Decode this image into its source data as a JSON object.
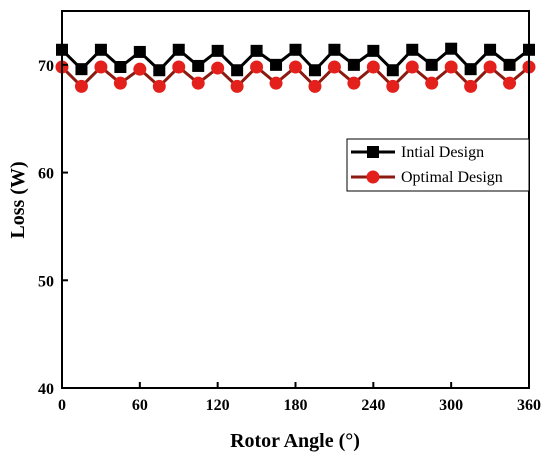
{
  "chart_data": {
    "type": "line",
    "title": "",
    "xlabel": "Rotor Angle (°)",
    "ylabel": "Loss (W)",
    "xlim": [
      0,
      360
    ],
    "ylim": [
      40,
      75
    ],
    "xticks": [
      0,
      60,
      120,
      180,
      240,
      300,
      360
    ],
    "yticks": [
      40,
      50,
      60,
      70
    ],
    "xtick_labels": [
      "0",
      "60",
      "120",
      "180",
      "240",
      "300",
      "360"
    ],
    "ytick_labels": [
      "40",
      "50",
      "60",
      "70"
    ],
    "grid": false,
    "legend_position": "center-right",
    "series": [
      {
        "name": "Intial Design",
        "color": "#000000",
        "marker": "square",
        "x": [
          0,
          15,
          30,
          45,
          60,
          75,
          90,
          105,
          120,
          135,
          150,
          165,
          180,
          195,
          210,
          225,
          240,
          255,
          270,
          285,
          300,
          315,
          330,
          345,
          360
        ],
        "values": [
          71.4,
          69.6,
          71.4,
          69.8,
          71.2,
          69.5,
          71.4,
          69.9,
          71.3,
          69.5,
          71.3,
          70.0,
          71.4,
          69.5,
          71.4,
          70.0,
          71.3,
          69.5,
          71.4,
          70.0,
          71.5,
          69.6,
          71.4,
          70.0,
          71.4
        ]
      },
      {
        "name": "Optimal Design",
        "color": "#e3201b",
        "line_color": "#8b1a10",
        "marker": "circle",
        "x": [
          0,
          15,
          30,
          45,
          60,
          75,
          90,
          105,
          120,
          135,
          150,
          165,
          180,
          195,
          210,
          225,
          240,
          255,
          270,
          285,
          300,
          315,
          330,
          345,
          360
        ],
        "values": [
          69.8,
          68.0,
          69.8,
          68.3,
          69.6,
          68.0,
          69.8,
          68.3,
          69.7,
          68.0,
          69.8,
          68.3,
          69.8,
          68.0,
          69.8,
          68.3,
          69.8,
          68.0,
          69.8,
          68.3,
          69.8,
          68.0,
          69.8,
          68.3,
          69.8
        ]
      }
    ]
  }
}
